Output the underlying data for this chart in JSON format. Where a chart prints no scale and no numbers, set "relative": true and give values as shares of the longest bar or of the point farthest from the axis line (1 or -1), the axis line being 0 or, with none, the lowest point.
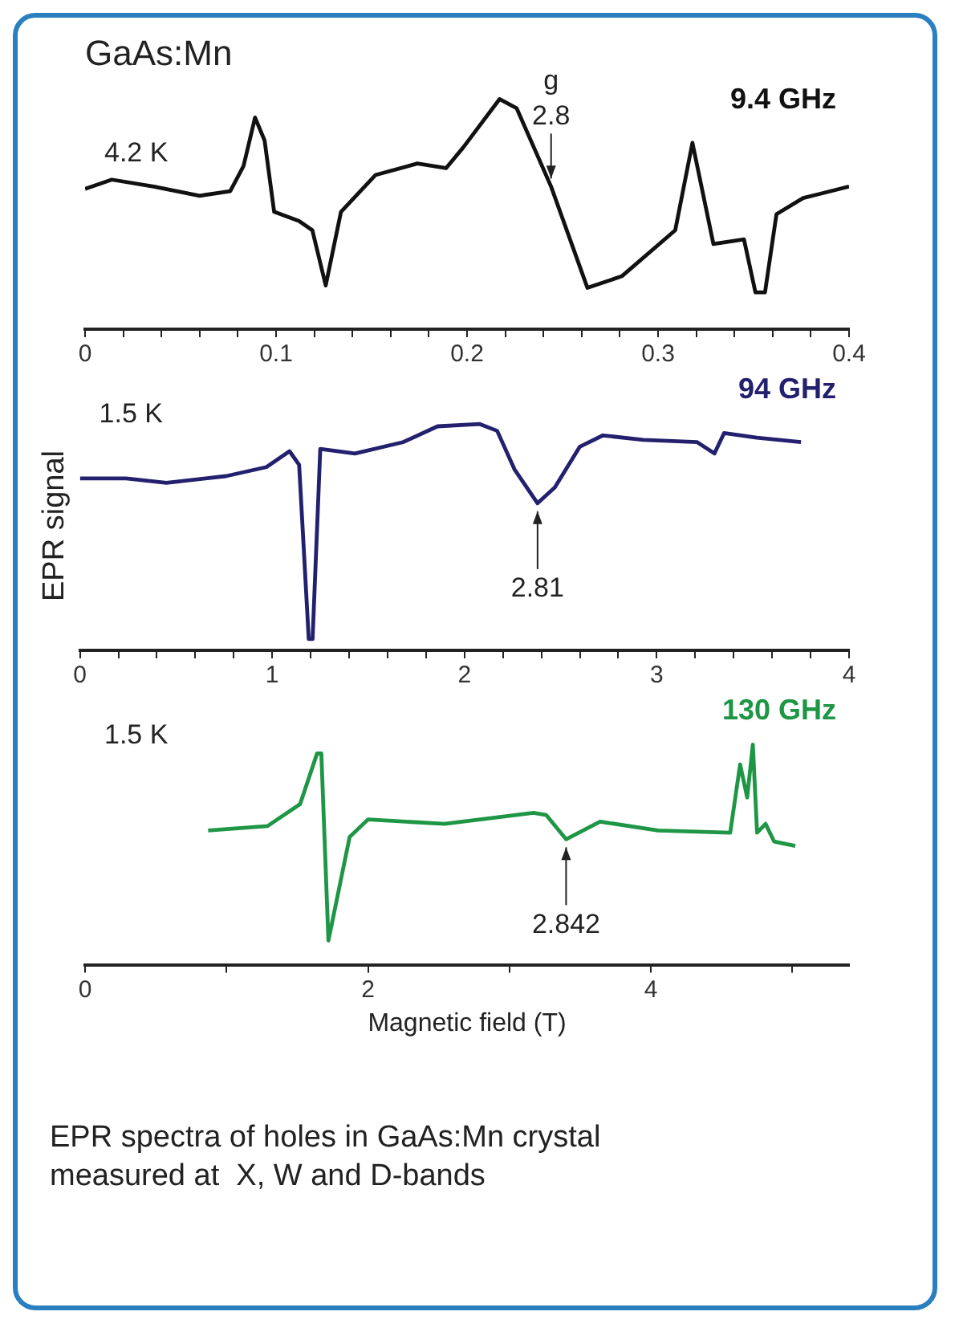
{
  "chart_data": [
    {
      "type": "line",
      "title": "GaAs:Mn",
      "relative": true,
      "xlim": [
        0,
        0.4
      ],
      "legend": false,
      "grid": false,
      "marker": "none",
      "line_style": "solid",
      "xticks": [
        0,
        {
          "value": 0.02,
          "label": null
        },
        {
          "value": 0.04,
          "label": null
        },
        {
          "value": 0.06,
          "label": null
        },
        {
          "value": 0.08,
          "label": null
        },
        0.1,
        {
          "value": 0.12,
          "label": null
        },
        {
          "value": 0.14,
          "label": null
        },
        {
          "value": 0.16,
          "label": null
        },
        {
          "value": 0.18,
          "label": null
        },
        0.2,
        {
          "value": 0.22,
          "label": null
        },
        {
          "value": 0.24,
          "label": null
        },
        {
          "value": 0.26,
          "label": null
        },
        {
          "value": 0.28,
          "label": null
        },
        0.3,
        {
          "value": 0.32,
          "label": null
        },
        {
          "value": 0.34,
          "label": null
        },
        {
          "value": 0.36,
          "label": null
        },
        {
          "value": 0.38,
          "label": null
        },
        0.4
      ],
      "annotations": [
        "4.2 K",
        "g",
        {
          "text": "2.8",
          "x": 0.244,
          "y": 0.62
        }
      ],
      "series": [
        {
          "name": "9.4 GHz",
          "color": "#111111",
          "x": [
            0,
            0.014,
            0.036,
            0.06,
            0.076,
            0.083,
            0.089,
            0.094,
            0.099,
            0.112,
            0.119,
            0.126,
            0.134,
            0.152,
            0.174,
            0.189,
            0.198,
            0.217,
            0.226,
            0.244,
            0.263,
            0.281,
            0.309,
            0.318,
            0.329,
            0.345,
            0.351,
            0.356,
            0.362,
            0.376,
            0.4
          ],
          "values": [
            0.61,
            0.65,
            0.62,
            0.58,
            0.6,
            0.71,
            0.92,
            0.82,
            0.51,
            0.47,
            0.43,
            0.19,
            0.51,
            0.67,
            0.72,
            0.7,
            0.79,
            1.0,
            0.96,
            0.62,
            0.18,
            0.23,
            0.43,
            0.81,
            0.37,
            0.39,
            0.16,
            0.16,
            0.5,
            0.57,
            0.62
          ]
        }
      ]
    },
    {
      "type": "line",
      "ylabel": "EPR signal",
      "relative": true,
      "xlim": [
        0,
        4
      ],
      "legend": false,
      "grid": false,
      "marker": "none",
      "line_style": "solid",
      "xticks": [
        0,
        {
          "value": 0.2,
          "label": null
        },
        {
          "value": 0.4,
          "label": null
        },
        {
          "value": 0.6,
          "label": null
        },
        {
          "value": 0.8,
          "label": null
        },
        1,
        {
          "value": 1.2,
          "label": null
        },
        {
          "value": 1.4,
          "label": null
        },
        {
          "value": 1.6,
          "label": null
        },
        {
          "value": 1.8,
          "label": null
        },
        2,
        {
          "value": 2.2,
          "label": null
        },
        {
          "value": 2.4,
          "label": null
        },
        {
          "value": 2.6,
          "label": null
        },
        {
          "value": 2.8,
          "label": null
        },
        3,
        {
          "value": 3.2,
          "label": null
        },
        {
          "value": 3.4,
          "label": null
        },
        {
          "value": 3.6,
          "label": null
        },
        {
          "value": 3.8,
          "label": null
        },
        4
      ],
      "annotations": [
        "1.5 K",
        {
          "text": "2.81",
          "x": 2.38,
          "y": 0.65
        }
      ],
      "series": [
        {
          "name": "94 GHz",
          "color": "#23206e",
          "x": [
            0,
            0.24,
            0.45,
            0.76,
            0.97,
            1.09,
            1.14,
            1.19,
            1.21,
            1.25,
            1.43,
            1.68,
            1.86,
            2.08,
            2.17,
            2.26,
            2.38,
            2.47,
            2.6,
            2.72,
            2.93,
            3.21,
            3.3,
            3.35,
            3.52,
            3.75
          ],
          "values": [
            0.76,
            0.76,
            0.74,
            0.77,
            0.81,
            0.88,
            0.82,
            0.05,
            0.05,
            0.89,
            0.87,
            0.92,
            0.99,
            1.0,
            0.97,
            0.8,
            0.65,
            0.72,
            0.9,
            0.95,
            0.93,
            0.92,
            0.87,
            0.96,
            0.94,
            0.92
          ]
        }
      ]
    },
    {
      "type": "line",
      "xlabel": "Magnetic field (T)",
      "relative": true,
      "xlim": [
        0,
        5.4
      ],
      "legend": false,
      "grid": false,
      "marker": "none",
      "line_style": "solid",
      "xticks": [
        0,
        {
          "value": 1,
          "label": null
        },
        2,
        {
          "value": 3,
          "label": null
        },
        4,
        {
          "value": 5,
          "label": null
        }
      ],
      "annotations": [
        "1.5 K",
        {
          "text": "2.842",
          "x": 3.4,
          "y": 0.57
        },
        "EPR spectra of holes in GaAs:Mn crystal measured at  X, W and D-bands"
      ],
      "series": [
        {
          "name": "130 GHz",
          "color": "#1e9645",
          "x": [
            0.87,
            1.29,
            1.52,
            1.64,
            1.67,
            1.72,
            1.87,
            2.0,
            2.54,
            3.17,
            3.26,
            3.4,
            3.64,
            4.05,
            4.56,
            4.63,
            4.68,
            4.72,
            4.75,
            4.81,
            4.87,
            5.02
          ],
          "values": [
            0.61,
            0.63,
            0.73,
            0.96,
            0.96,
            0.11,
            0.58,
            0.66,
            0.64,
            0.69,
            0.68,
            0.57,
            0.65,
            0.61,
            0.6,
            0.91,
            0.76,
            1.0,
            0.6,
            0.64,
            0.56,
            0.54
          ]
        }
      ]
    }
  ]
}
